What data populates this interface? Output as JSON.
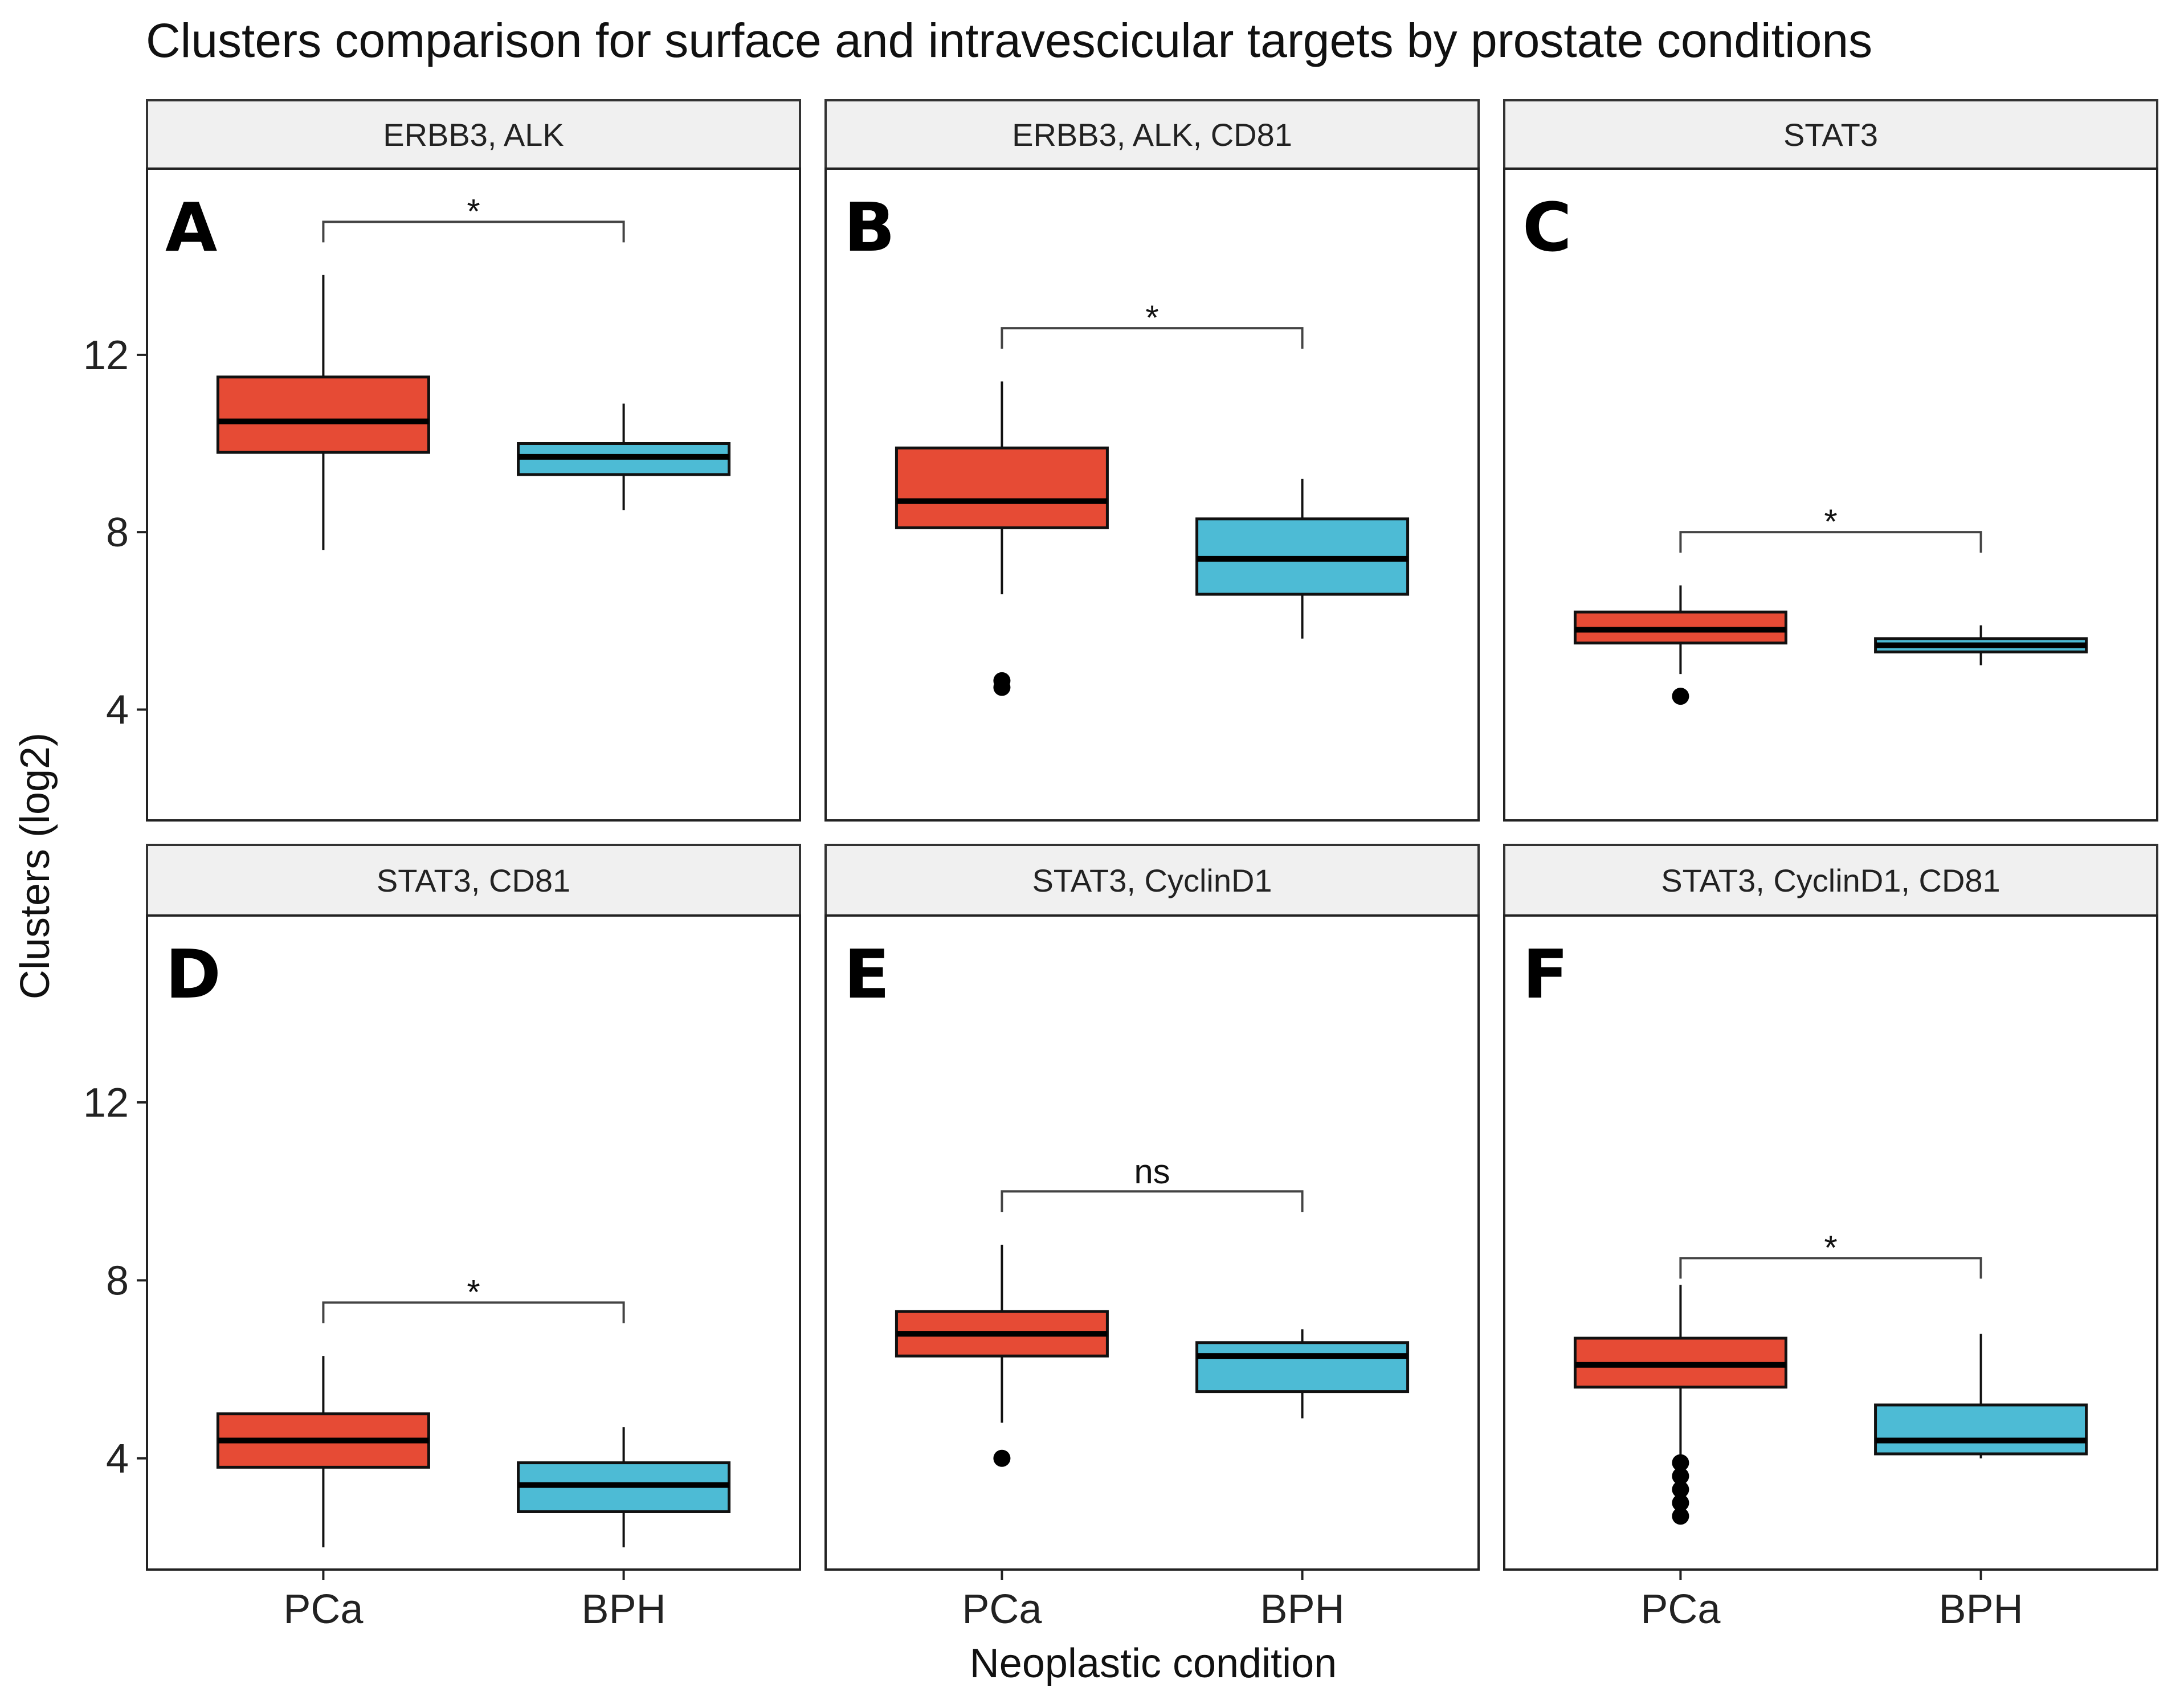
{
  "chart_data": {
    "type": "boxplot",
    "title": "Clusters comparison for surface and intravescicular targets by prostate conditions",
    "xlabel": "Neoplastic condition",
    "ylabel": "Clusters (log2)",
    "categories": [
      "PCa",
      "BPH"
    ],
    "y_ticks": [
      4,
      8,
      12
    ],
    "ylim": [
      1.5,
      16.2
    ],
    "colors": {
      "PCa": "#E64B35",
      "BPH": "#4DBBD5"
    },
    "panels": [
      {
        "strip": "ERBB3, ALK",
        "letter": "A",
        "significance": "*",
        "bracket_y": 15.0,
        "boxes": [
          {
            "group": "PCa",
            "whisker_low": 7.6,
            "q1": 9.8,
            "median": 10.5,
            "q3": 11.5,
            "whisker_high": 13.8,
            "outliers": []
          },
          {
            "group": "BPH",
            "whisker_low": 8.5,
            "q1": 9.3,
            "median": 9.7,
            "q3": 10.0,
            "whisker_high": 10.9,
            "outliers": []
          }
        ]
      },
      {
        "strip": "ERBB3, ALK, CD81",
        "letter": "B",
        "significance": "*",
        "bracket_y": 12.6,
        "boxes": [
          {
            "group": "PCa",
            "whisker_low": 6.6,
            "q1": 8.1,
            "median": 8.7,
            "q3": 9.9,
            "whisker_high": 11.4,
            "outliers": [
              4.5,
              4.65
            ]
          },
          {
            "group": "BPH",
            "whisker_low": 5.6,
            "q1": 6.6,
            "median": 7.4,
            "q3": 8.3,
            "whisker_high": 9.2,
            "outliers": []
          }
        ]
      },
      {
        "strip": "STAT3",
        "letter": "C",
        "significance": "*",
        "bracket_y": 8.0,
        "boxes": [
          {
            "group": "PCa",
            "whisker_low": 4.8,
            "q1": 5.5,
            "median": 5.8,
            "q3": 6.2,
            "whisker_high": 6.8,
            "outliers": [
              4.3
            ]
          },
          {
            "group": "BPH",
            "whisker_low": 5.0,
            "q1": 5.3,
            "median": 5.45,
            "q3": 5.6,
            "whisker_high": 5.9,
            "outliers": []
          }
        ]
      },
      {
        "strip": "STAT3, CD81",
        "letter": "D",
        "significance": "*",
        "bracket_y": 7.5,
        "boxes": [
          {
            "group": "PCa",
            "whisker_low": 2.0,
            "q1": 3.8,
            "median": 4.4,
            "q3": 5.0,
            "whisker_high": 6.3,
            "outliers": []
          },
          {
            "group": "BPH",
            "whisker_low": 2.0,
            "q1": 2.8,
            "median": 3.4,
            "q3": 3.9,
            "whisker_high": 4.7,
            "outliers": []
          }
        ]
      },
      {
        "strip": "STAT3, CyclinD1",
        "letter": "E",
        "significance": "ns",
        "bracket_y": 10.0,
        "boxes": [
          {
            "group": "PCa",
            "whisker_low": 4.8,
            "q1": 6.3,
            "median": 6.8,
            "q3": 7.3,
            "whisker_high": 8.8,
            "outliers": [
              4.0
            ]
          },
          {
            "group": "BPH",
            "whisker_low": 4.9,
            "q1": 5.5,
            "median": 6.3,
            "q3": 6.6,
            "whisker_high": 6.9,
            "outliers": []
          }
        ]
      },
      {
        "strip": "STAT3, CyclinD1, CD81",
        "letter": "F",
        "significance": "*",
        "bracket_y": 8.5,
        "boxes": [
          {
            "group": "PCa",
            "whisker_low": 4.0,
            "q1": 5.6,
            "median": 6.1,
            "q3": 6.7,
            "whisker_high": 7.9,
            "outliers": [
              2.7,
              3.0,
              3.3,
              3.6,
              3.9
            ]
          },
          {
            "group": "BPH",
            "whisker_low": 4.0,
            "q1": 4.1,
            "median": 4.4,
            "q3": 5.2,
            "whisker_high": 6.8,
            "outliers": []
          }
        ]
      }
    ]
  }
}
